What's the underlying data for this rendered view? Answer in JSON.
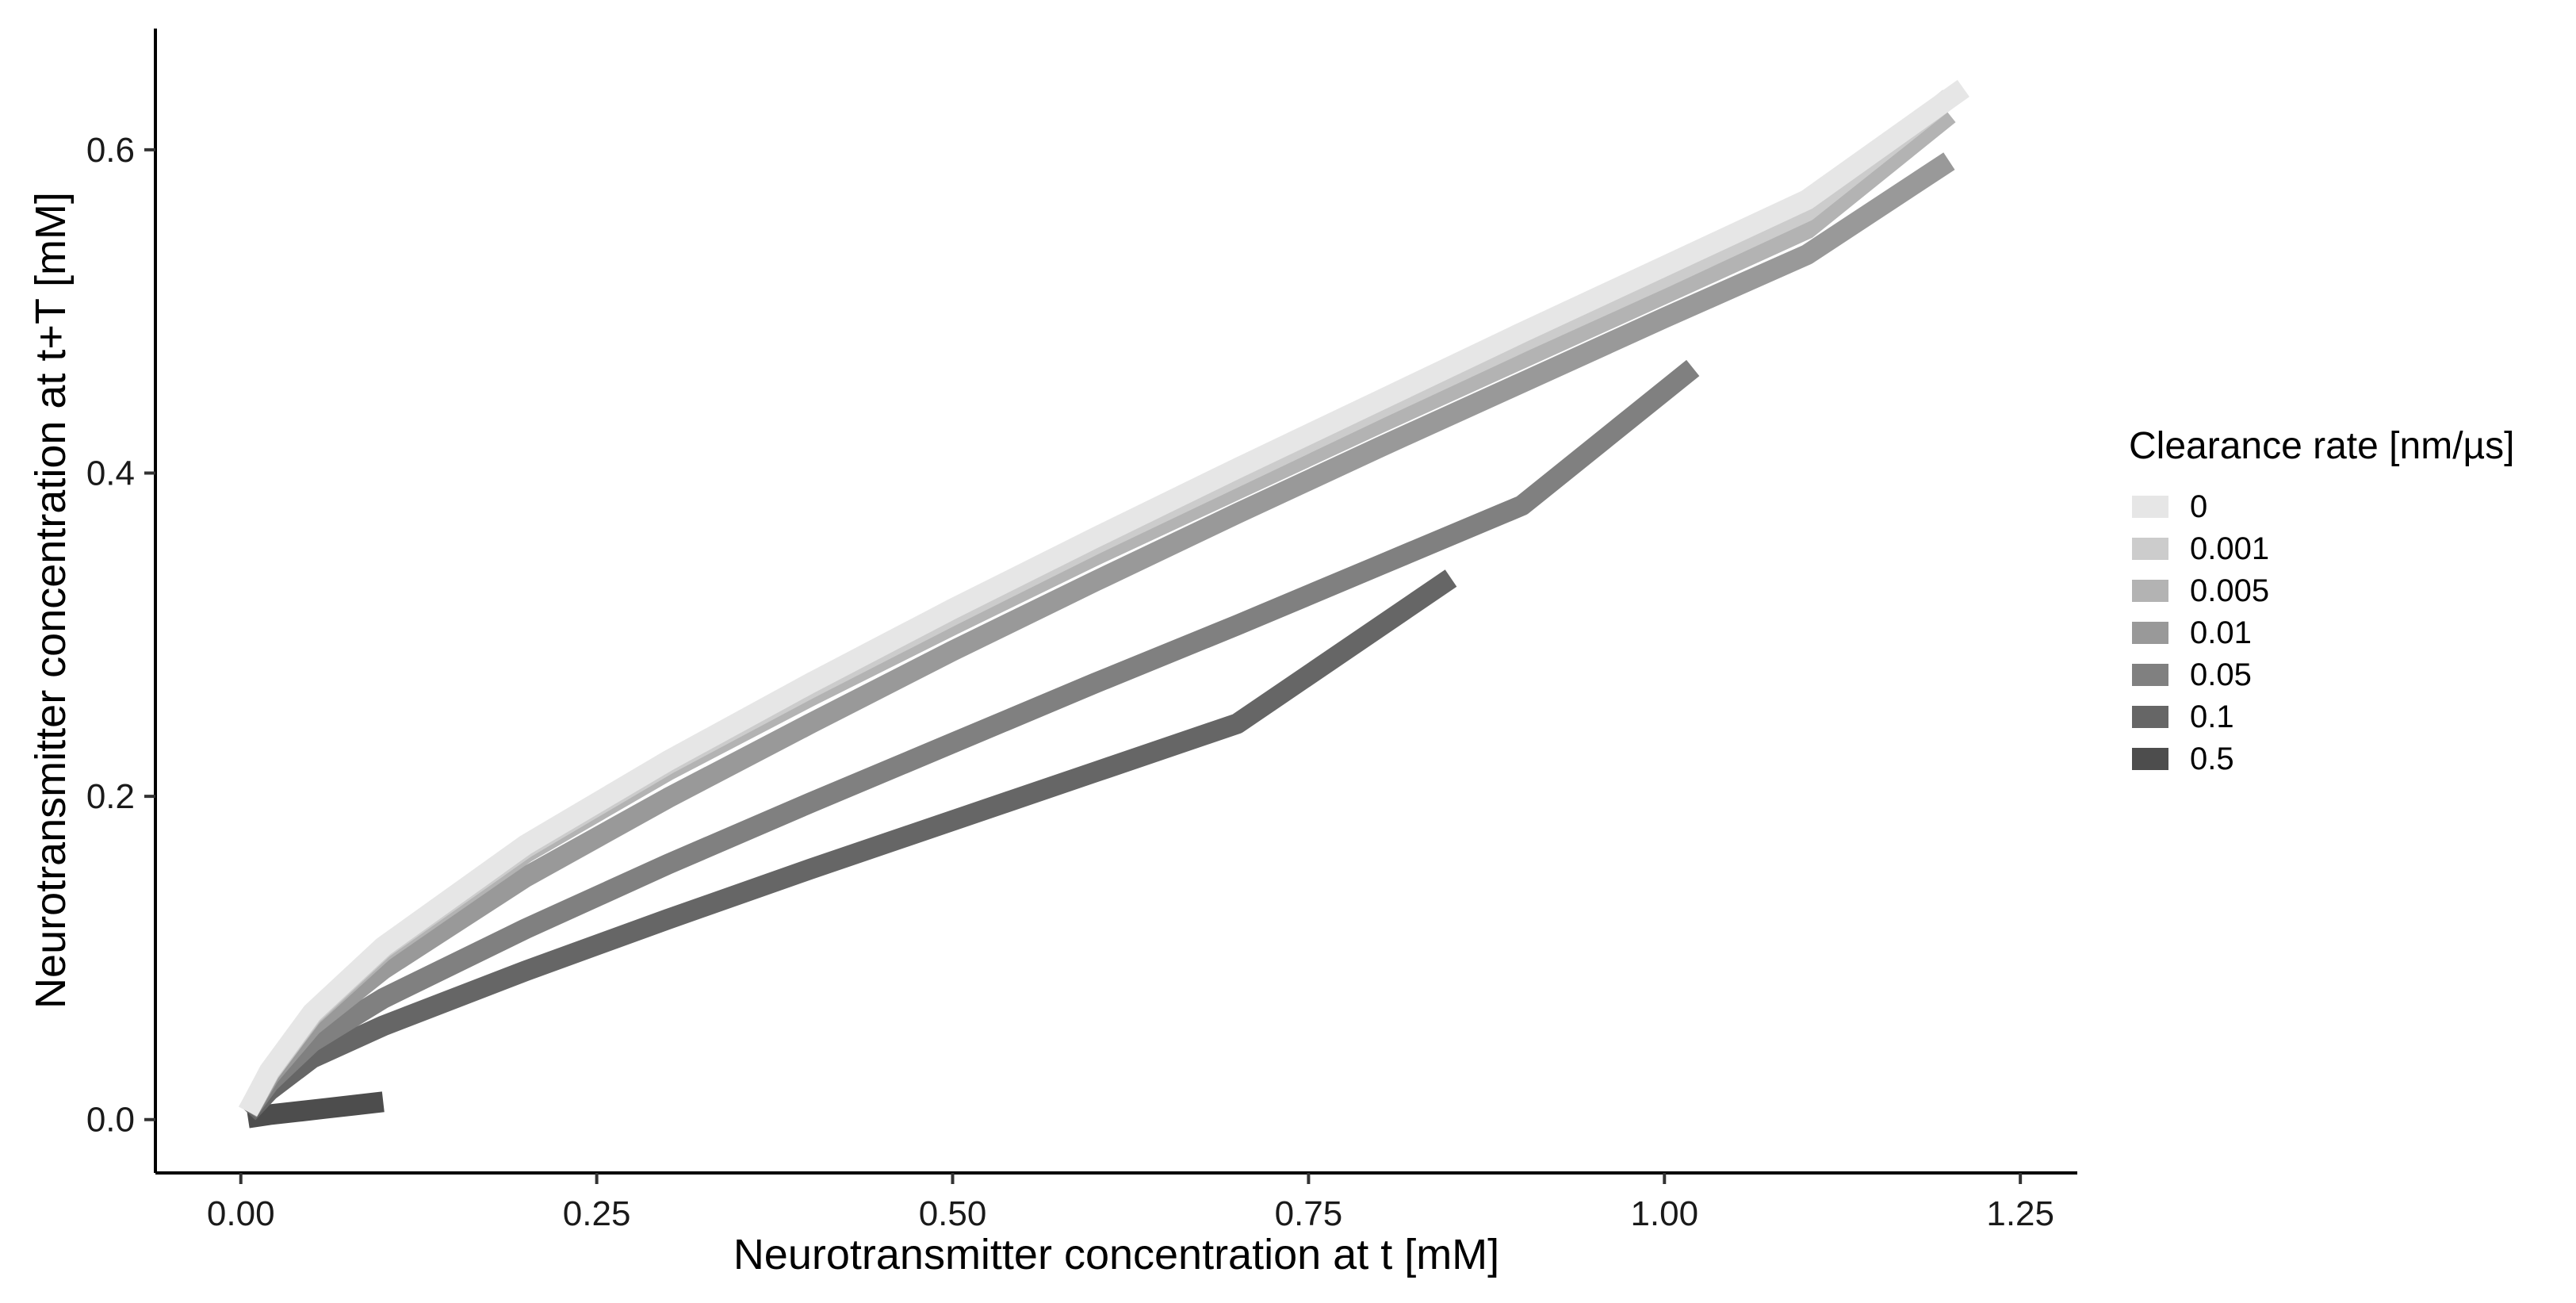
{
  "chart_data": {
    "type": "line",
    "title": "",
    "xlabel": "Neurotransmitter concentration at t [mM]",
    "ylabel": "Neurotransmitter concentration at t+T [mM]",
    "xlim": [
      -0.06,
      1.29
    ],
    "ylim": [
      -0.033,
      0.675
    ],
    "x_ticks": [
      0.0,
      0.25,
      0.5,
      0.75,
      1.0,
      1.25
    ],
    "x_tick_labels": [
      "0.00",
      "0.25",
      "0.50",
      "0.75",
      "1.00",
      "1.25"
    ],
    "y_ticks": [
      0.0,
      0.2,
      0.4,
      0.6
    ],
    "y_tick_labels": [
      "0.0",
      "0.2",
      "0.4",
      "0.6"
    ],
    "grid": false,
    "legend": {
      "title": "Clearance rate [nm/µs]",
      "placement": "right"
    },
    "series": [
      {
        "name": "0",
        "color": "#e6e6e6",
        "x": [
          0.005,
          0.02,
          0.05,
          0.1,
          0.2,
          0.3,
          0.4,
          0.5,
          0.6,
          0.7,
          0.8,
          0.9,
          1.0,
          1.1,
          1.21
        ],
        "y": [
          0.005,
          0.03,
          0.066,
          0.107,
          0.17,
          0.222,
          0.27,
          0.316,
          0.36,
          0.403,
          0.445,
          0.487,
          0.528,
          0.569,
          0.638
        ]
      },
      {
        "name": "0.001",
        "color": "#cccccc",
        "x": [
          0.005,
          0.02,
          0.05,
          0.1,
          0.2,
          0.3,
          0.4,
          0.5,
          0.6,
          0.7,
          0.8,
          0.9,
          1.0,
          1.1,
          1.2
        ],
        "y": [
          0.005,
          0.029,
          0.065,
          0.106,
          0.168,
          0.22,
          0.267,
          0.312,
          0.356,
          0.398,
          0.44,
          0.481,
          0.521,
          0.562,
          0.632
        ]
      },
      {
        "name": "0.005",
        "color": "#b3b3b3",
        "x": [
          0.005,
          0.02,
          0.05,
          0.1,
          0.2,
          0.3,
          0.4,
          0.5,
          0.6,
          0.7,
          0.8,
          0.9,
          1.0,
          1.1,
          1.2
        ],
        "y": [
          0.005,
          0.029,
          0.064,
          0.104,
          0.165,
          0.216,
          0.262,
          0.306,
          0.349,
          0.39,
          0.431,
          0.471,
          0.511,
          0.551,
          0.622
        ]
      },
      {
        "name": "0.01",
        "color": "#999999",
        "x": [
          0.005,
          0.02,
          0.05,
          0.1,
          0.2,
          0.3,
          0.4,
          0.5,
          0.6,
          0.7,
          0.8,
          0.9,
          1.0,
          1.1,
          1.2
        ],
        "y": [
          0.005,
          0.027,
          0.058,
          0.093,
          0.15,
          0.199,
          0.245,
          0.29,
          0.333,
          0.375,
          0.416,
          0.456,
          0.496,
          0.535,
          0.593
        ]
      },
      {
        "name": "0.05",
        "color": "#808080",
        "x": [
          0.005,
          0.02,
          0.05,
          0.1,
          0.2,
          0.3,
          0.4,
          0.5,
          0.6,
          0.7,
          0.8,
          0.9,
          1.02
        ],
        "y": [
          0.005,
          0.023,
          0.048,
          0.075,
          0.118,
          0.158,
          0.196,
          0.233,
          0.27,
          0.306,
          0.343,
          0.38,
          0.465
        ]
      },
      {
        "name": "0.1",
        "color": "#666666",
        "x": [
          0.005,
          0.02,
          0.05,
          0.1,
          0.2,
          0.3,
          0.4,
          0.5,
          0.6,
          0.7,
          0.85
        ],
        "y": [
          0.004,
          0.018,
          0.038,
          0.058,
          0.092,
          0.124,
          0.155,
          0.185,
          0.215,
          0.245,
          0.335
        ]
      },
      {
        "name": "0.5",
        "color": "#4d4d4d",
        "x": [
          0.005,
          0.02,
          0.04,
          0.06,
          0.08,
          0.1
        ],
        "y": [
          0.001,
          0.003,
          0.005,
          0.007,
          0.009,
          0.011
        ]
      }
    ]
  }
}
